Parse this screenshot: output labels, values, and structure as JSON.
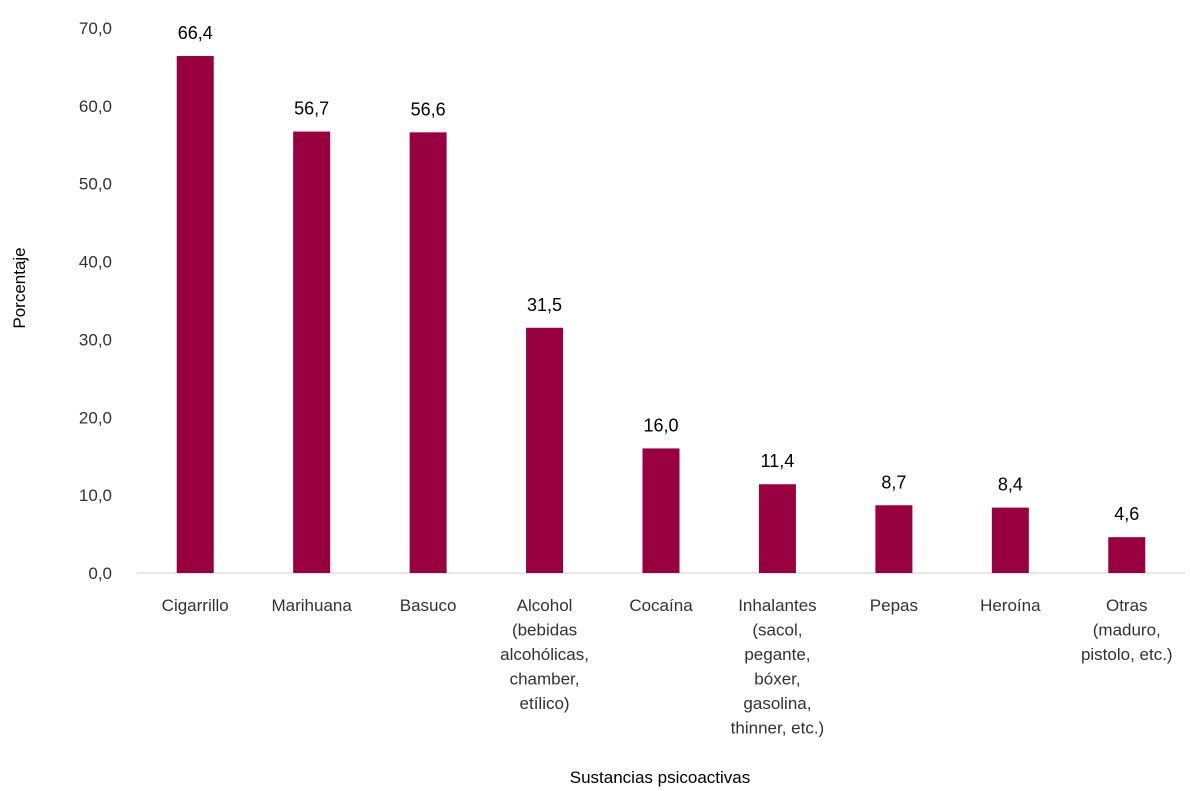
{
  "chart_data": {
    "type": "bar",
    "title": "",
    "xlabel": "Sustancias psicoactivas",
    "ylabel": "Porcentaje",
    "ylim": [
      0,
      70
    ],
    "yticks": [
      "0,0",
      "10,0",
      "20,0",
      "30,0",
      "40,0",
      "50,0",
      "60,0",
      "70,0"
    ],
    "grid": false,
    "bar_color": "#990040",
    "categories": [
      [
        "Cigarrillo"
      ],
      [
        "Marihuana"
      ],
      [
        "Basuco"
      ],
      [
        "Alcohol",
        "(bebidas",
        "alcohólicas,",
        "chamber,",
        "etílico)"
      ],
      [
        "Cocaína"
      ],
      [
        "Inhalantes",
        "(sacol,",
        "pegante,",
        "bóxer,",
        "gasolina,",
        "thinner, etc.)"
      ],
      [
        "Pepas"
      ],
      [
        "Heroína"
      ],
      [
        "Otras",
        "(maduro,",
        "pistolo, etc.)"
      ]
    ],
    "values": [
      66.4,
      56.7,
      56.6,
      31.5,
      16.0,
      11.4,
      8.7,
      8.4,
      4.6
    ],
    "value_labels": [
      "66,4",
      "56,7",
      "56,6",
      "31,5",
      "16,0",
      "11,4",
      "8,7",
      "8,4",
      "4,6"
    ]
  }
}
